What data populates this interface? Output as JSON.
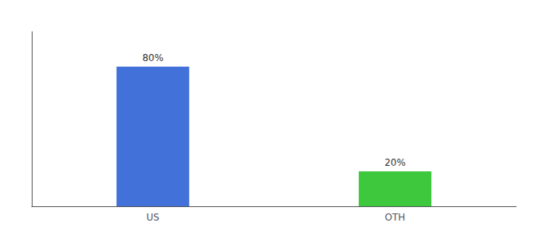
{
  "chart_data": {
    "type": "bar",
    "categories": [
      "US",
      "OTH"
    ],
    "values": [
      80,
      20
    ],
    "value_labels": [
      "80%",
      "20%"
    ],
    "colors": [
      "#4272d9",
      "#3dc83d"
    ],
    "ylim": [
      0,
      100
    ],
    "grid": false,
    "data_labels": true,
    "tick_labels": "x"
  }
}
